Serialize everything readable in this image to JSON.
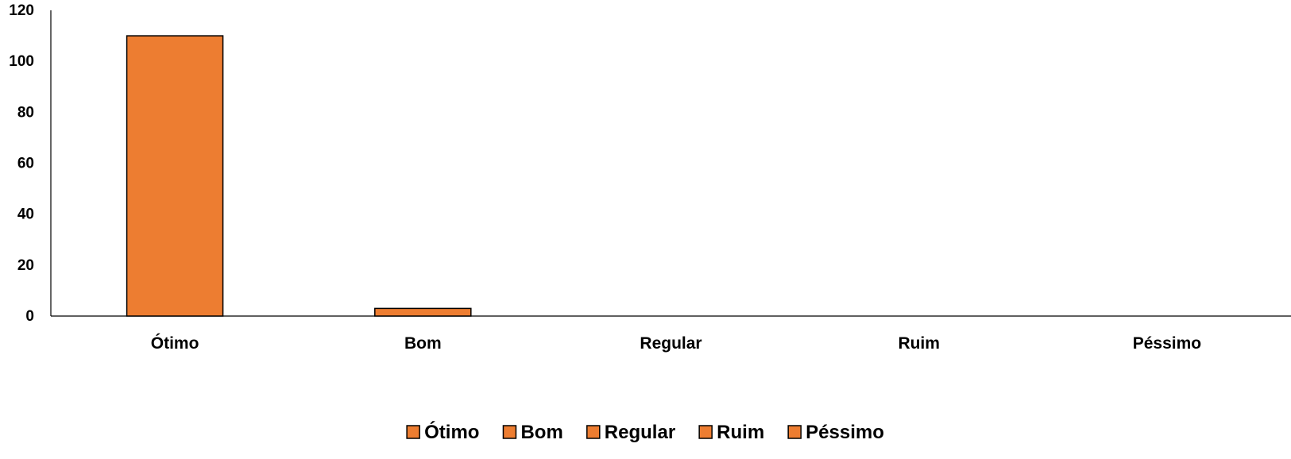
{
  "chart_data": {
    "type": "bar",
    "categories": [
      "Ótimo",
      "Bom",
      "Regular",
      "Ruim",
      "Péssimo"
    ],
    "series": [
      {
        "values": [
          110,
          3,
          0,
          0,
          0
        ]
      }
    ],
    "yticks": [
      0,
      20,
      40,
      60,
      80,
      100,
      120
    ],
    "ylim": [
      0,
      120
    ],
    "grid": false,
    "legend_position": "bottom",
    "legend_entries": [
      "Ótimo",
      "Bom",
      "Regular",
      "Ruim",
      "Péssimo"
    ],
    "bar_color": "#ED7D31",
    "bar_edge_color": "#000000",
    "title": "",
    "xlabel": "",
    "ylabel": ""
  }
}
